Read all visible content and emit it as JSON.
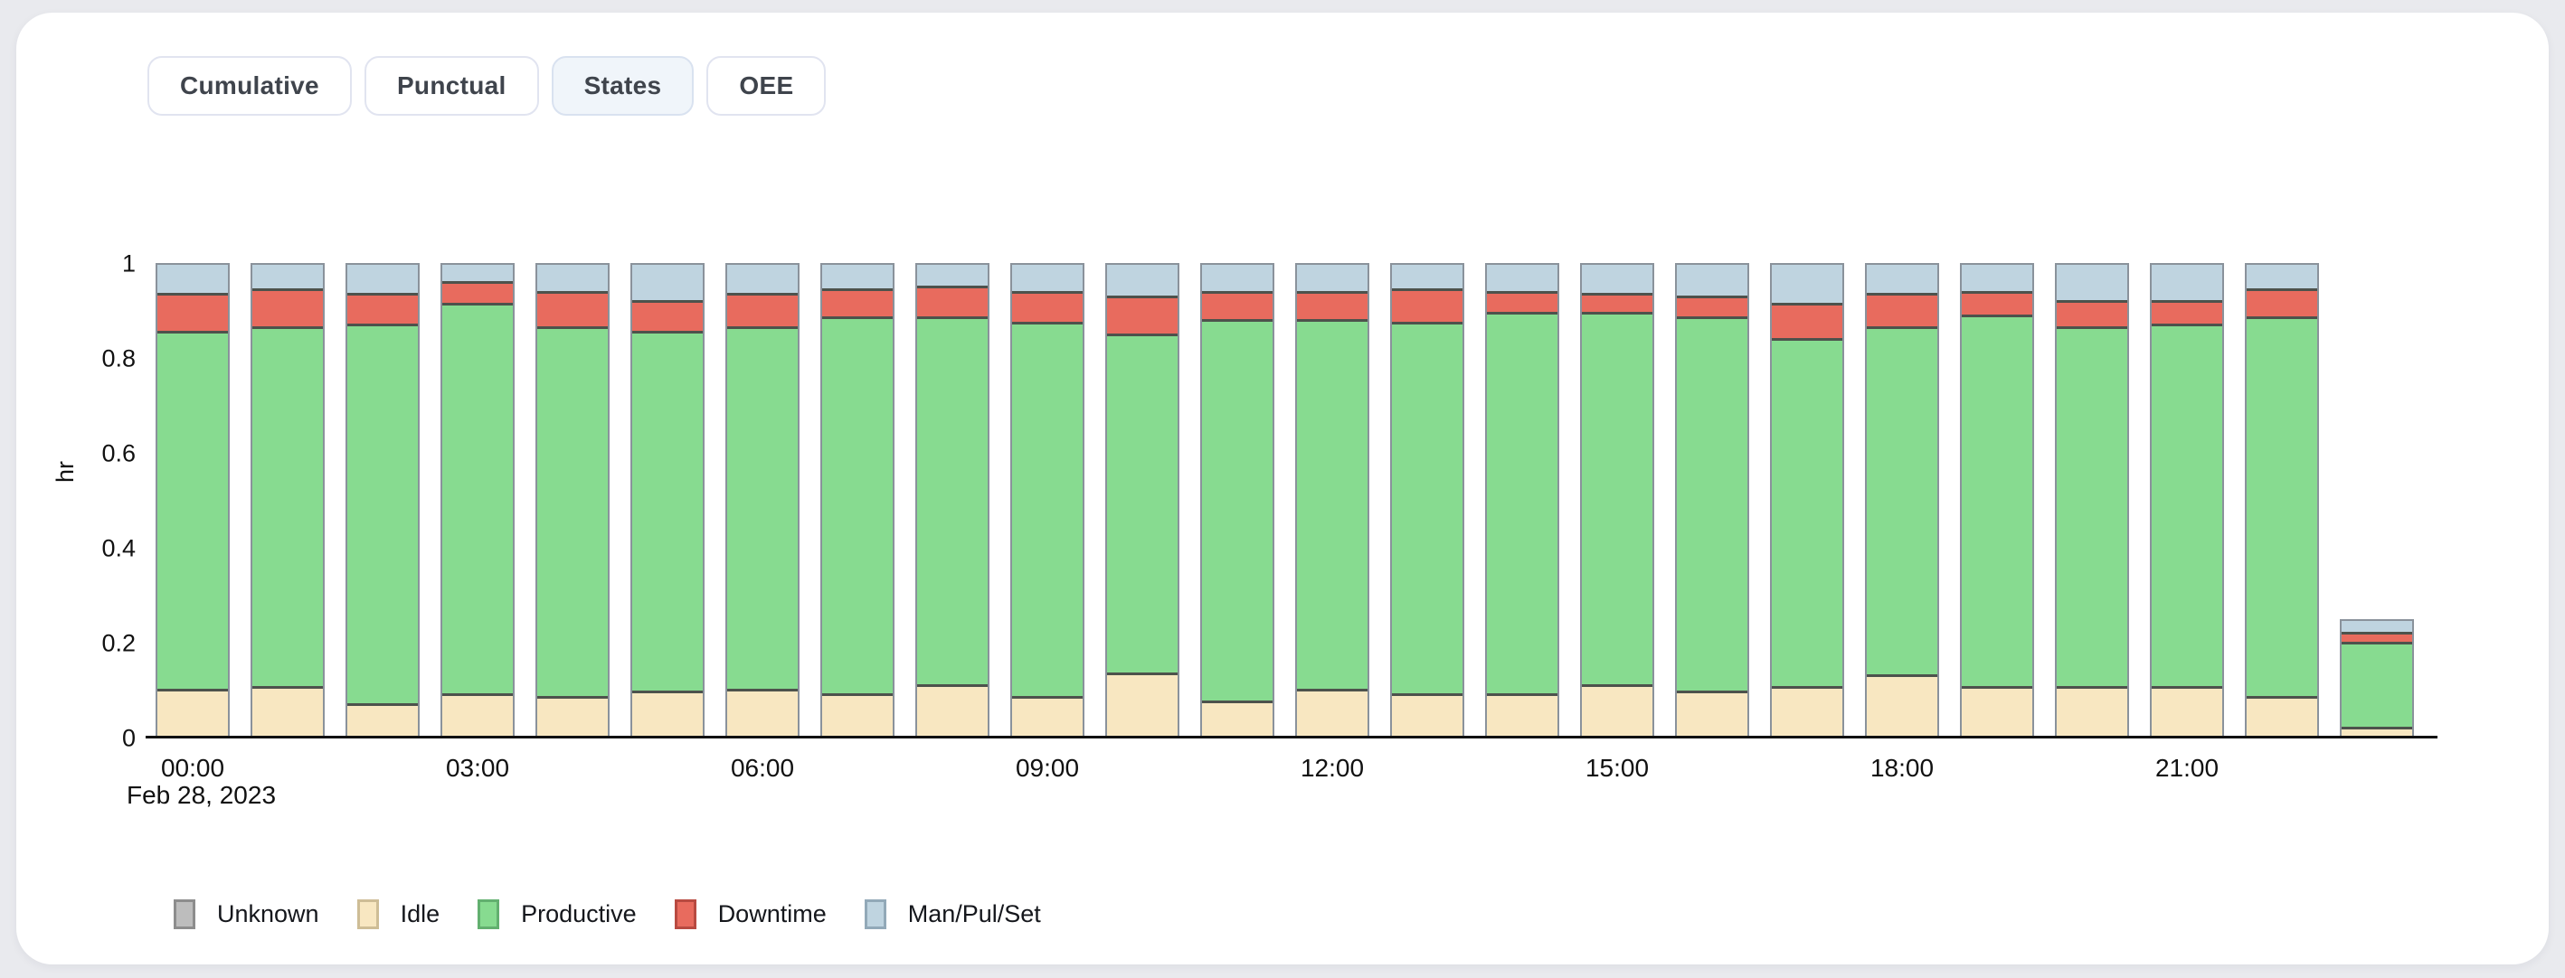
{
  "page": {
    "background": "#e9eaee",
    "card_background": "#ffffff"
  },
  "tabs": [
    {
      "label": "Cumulative",
      "active": false
    },
    {
      "label": "Punctual",
      "active": false
    },
    {
      "label": "States",
      "active": true
    },
    {
      "label": "OEE",
      "active": false
    }
  ],
  "chart_data": {
    "type": "bar",
    "stacked": true,
    "title": "",
    "ylabel": "hr",
    "xlabel": "",
    "x_date_label": "Feb 28, 2023",
    "ylim": [
      0,
      1
    ],
    "y_ticks": [
      0,
      0.2,
      0.4,
      0.6,
      0.8,
      1
    ],
    "y_tick_labels": [
      "0",
      "0.2",
      "0.4",
      "0.6",
      "0.8",
      "1"
    ],
    "x_tick_labels": [
      "00:00",
      "03:00",
      "06:00",
      "09:00",
      "12:00",
      "15:00",
      "18:00",
      "21:00"
    ],
    "x_tick_every_n_bars": 3,
    "grid": false,
    "legend_position": "bottom-left",
    "categories": [
      "00:00",
      "01:00",
      "02:00",
      "03:00",
      "04:00",
      "05:00",
      "06:00",
      "07:00",
      "08:00",
      "09:00",
      "10:00",
      "11:00",
      "12:00",
      "13:00",
      "14:00",
      "15:00",
      "16:00",
      "17:00",
      "18:00",
      "19:00",
      "20:00",
      "21:00",
      "22:00",
      "23:00"
    ],
    "series": [
      {
        "name": "Unknown",
        "color": "#bdbdbd",
        "border_color": "#8d8d8d",
        "values": [
          0,
          0,
          0,
          0,
          0,
          0,
          0,
          0,
          0,
          0,
          0,
          0,
          0,
          0,
          0,
          0,
          0,
          0,
          0,
          0,
          0,
          0,
          0,
          0
        ]
      },
      {
        "name": "Idle",
        "color": "#f8e7c1",
        "border_color": "#cebd96",
        "values": [
          0.1,
          0.105,
          0.07,
          0.09,
          0.085,
          0.095,
          0.1,
          0.09,
          0.11,
          0.085,
          0.135,
          0.075,
          0.1,
          0.09,
          0.09,
          0.11,
          0.095,
          0.105,
          0.13,
          0.105,
          0.105,
          0.105,
          0.085,
          0.02
        ]
      },
      {
        "name": "Productive",
        "color": "#87db90",
        "border_color": "#62b06f",
        "values": [
          0.76,
          0.765,
          0.805,
          0.83,
          0.785,
          0.765,
          0.77,
          0.8,
          0.78,
          0.795,
          0.72,
          0.81,
          0.785,
          0.79,
          0.81,
          0.79,
          0.795,
          0.74,
          0.74,
          0.79,
          0.765,
          0.77,
          0.805,
          0.185
        ]
      },
      {
        "name": "Downtime",
        "color": "#e86b5e",
        "border_color": "#b84a41",
        "values": [
          0.08,
          0.08,
          0.065,
          0.045,
          0.075,
          0.065,
          0.07,
          0.06,
          0.065,
          0.065,
          0.08,
          0.06,
          0.06,
          0.07,
          0.045,
          0.04,
          0.045,
          0.075,
          0.07,
          0.05,
          0.055,
          0.05,
          0.06,
          0.02
        ]
      },
      {
        "name": "Man/Pul/Set",
        "color": "#bfd4e0",
        "border_color": "#92a9b8",
        "values": [
          0.06,
          0.05,
          0.06,
          0.035,
          0.055,
          0.075,
          0.06,
          0.05,
          0.045,
          0.055,
          0.065,
          0.055,
          0.055,
          0.05,
          0.055,
          0.06,
          0.065,
          0.08,
          0.06,
          0.055,
          0.075,
          0.075,
          0.05,
          0.025
        ]
      }
    ]
  }
}
